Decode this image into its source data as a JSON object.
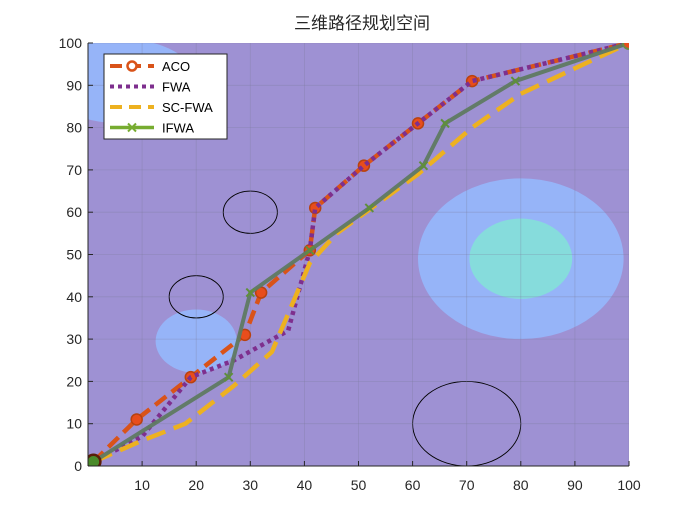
{
  "chart_data": {
    "type": "line",
    "title": "三维路径规划空间",
    "xlabel": "",
    "ylabel": "",
    "xlim": [
      0,
      100
    ],
    "ylim": [
      0,
      100
    ],
    "xticks": [
      10,
      20,
      30,
      40,
      50,
      60,
      70,
      80,
      90,
      100
    ],
    "yticks": [
      0,
      10,
      20,
      30,
      40,
      50,
      60,
      70,
      80,
      90,
      100
    ],
    "grid": true,
    "legend_position": "top-left",
    "background_color": "#9e91d3",
    "terrain": [
      {
        "type": "filled-ellipse",
        "cx": 80,
        "cy": 49,
        "rx": 19,
        "ry": 19,
        "color": "#96b4f8"
      },
      {
        "type": "filled-ellipse",
        "cx": 80,
        "cy": 49,
        "rx": 9.5,
        "ry": 9.5,
        "color": "#86dcdc"
      },
      {
        "type": "filled-ellipse",
        "cx": 20,
        "cy": 29.5,
        "rx": 7.5,
        "ry": 7.5,
        "color": "#96b4f8"
      },
      {
        "type": "filled-ellipse",
        "cx": 6,
        "cy": 91,
        "rx": 14,
        "ry": 10,
        "color": "#96b4f8"
      },
      {
        "type": "contour",
        "cx": 30,
        "cy": 60,
        "rx": 5,
        "ry": 5,
        "color": "#000000"
      },
      {
        "type": "contour",
        "cx": 20,
        "cy": 40,
        "rx": 5,
        "ry": 5,
        "color": "#000000"
      },
      {
        "type": "contour",
        "cx": 70,
        "cy": 10,
        "rx": 10,
        "ry": 10,
        "color": "#000000"
      }
    ],
    "series": [
      {
        "name": "ACO",
        "color": "#d95319",
        "style": "dashed-marker-circle",
        "x": [
          1,
          9,
          19,
          29,
          32,
          41,
          42,
          51,
          61,
          71,
          100
        ],
        "y": [
          1,
          11,
          21,
          31,
          41,
          51,
          61,
          71,
          81,
          91,
          100
        ]
      },
      {
        "name": "FWA",
        "color": "#7e2f8e",
        "style": "dotted",
        "x": [
          1,
          10,
          19,
          27,
          37,
          41,
          42,
          51,
          61,
          71,
          100
        ],
        "y": [
          1,
          7,
          21,
          25,
          32,
          51,
          61,
          71,
          81,
          91,
          100
        ]
      },
      {
        "name": "SC-FWA",
        "color": "#edb120",
        "style": "long-dashed",
        "x": [
          1,
          10,
          18,
          27,
          34,
          41,
          46,
          61,
          71,
          80,
          100
        ],
        "y": [
          1,
          6,
          10,
          19,
          27,
          48,
          55,
          69,
          80,
          88,
          100
        ]
      },
      {
        "name": "IFWA",
        "color": "#77ac30",
        "style": "solid-marker-x",
        "x": [
          1,
          26,
          30,
          41,
          52,
          62,
          66,
          79,
          100
        ],
        "y": [
          1,
          21,
          41,
          51,
          61,
          71,
          81,
          91,
          100
        ]
      }
    ]
  }
}
